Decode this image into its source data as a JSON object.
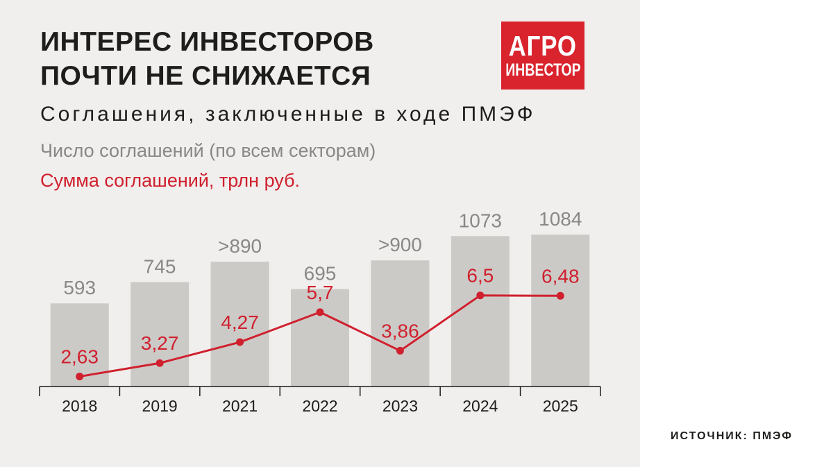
{
  "title_line1": "ИНТЕРЕС ИНВЕСТОРОВ",
  "title_line2": "ПОЧТИ НЕ СНИЖАЕТСЯ",
  "subtitle": "Соглашения, заключенные в ходе ПМЭФ",
  "logo": {
    "line1": "АГРО",
    "line2": "ИНВЕСТОР"
  },
  "source": "ИСТОЧНИК: ПМЭФ",
  "colors": {
    "bar": "#cccac7",
    "line": "#d0202e",
    "background": "#f1efed"
  },
  "chart_data": {
    "type": "bar",
    "categories": [
      "2018",
      "2019",
      "2021",
      "2022",
      "2023",
      "2024",
      "2025"
    ],
    "series": [
      {
        "name": "Число соглашений (по всем секторам)",
        "type": "bar",
        "values": [
          593,
          745,
          890,
          695,
          900,
          1073,
          1084
        ],
        "labels": [
          "593",
          "745",
          ">890",
          "695",
          ">900",
          "1073",
          "1084"
        ]
      },
      {
        "name": "Сумма соглашений, трлн руб.",
        "type": "line",
        "values": [
          2.63,
          3.27,
          4.27,
          5.7,
          3.86,
          6.5,
          6.48
        ],
        "labels": [
          "2,63",
          "3,27",
          "4,27",
          "5,7",
          "3,86",
          "6,5",
          "6,48"
        ]
      }
    ],
    "grid": false,
    "legend": "top-left"
  }
}
